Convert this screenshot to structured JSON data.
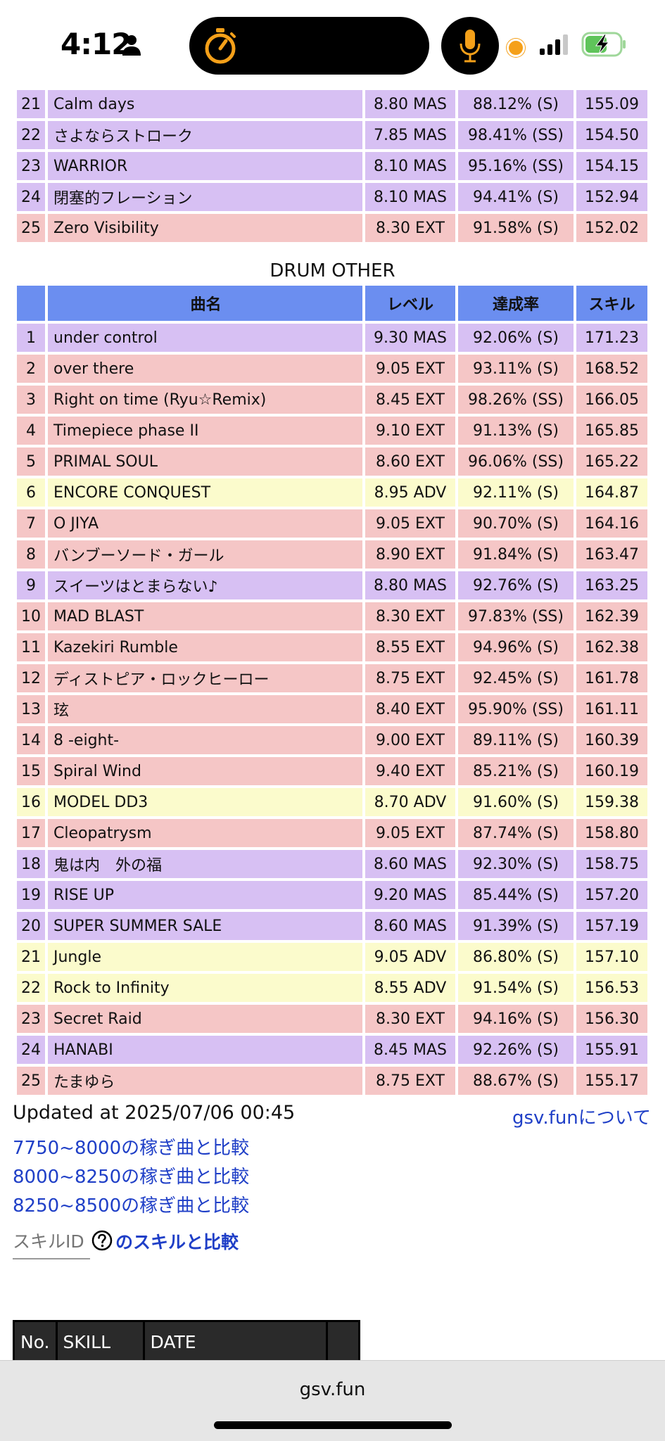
{
  "status_bar": {
    "time": "4:12",
    "icons": [
      "person-icon",
      "timer-icon",
      "mic-icon",
      "signal-icon",
      "battery-charging-icon"
    ],
    "accent_color": "#f5a019"
  },
  "top_table": {
    "rows": [
      {
        "no": "21",
        "name": "Calm days",
        "level": "8.80 MAS",
        "rate": "88.12% (S)",
        "skill": "155.09",
        "diff": "mas"
      },
      {
        "no": "22",
        "name": "さよならストローク",
        "level": "7.85 MAS",
        "rate": "98.41% (SS)",
        "skill": "154.50",
        "diff": "mas"
      },
      {
        "no": "23",
        "name": "WARRIOR",
        "level": "8.10 MAS",
        "rate": "95.16% (SS)",
        "skill": "154.15",
        "diff": "mas"
      },
      {
        "no": "24",
        "name": "閉塞的フレーション",
        "level": "8.10 MAS",
        "rate": "94.41% (S)",
        "skill": "152.94",
        "diff": "mas"
      },
      {
        "no": "25",
        "name": "Zero Visibility",
        "level": "8.30 EXT",
        "rate": "91.58% (S)",
        "skill": "152.02",
        "diff": "ext"
      }
    ]
  },
  "other_section": {
    "title": "DRUM OTHER",
    "headers": {
      "no": "",
      "name": "曲名",
      "level": "レベル",
      "rate": "達成率",
      "skill": "スキル"
    },
    "rows": [
      {
        "no": "1",
        "name": "under control",
        "level": "9.30 MAS",
        "rate": "92.06% (S)",
        "skill": "171.23",
        "diff": "mas"
      },
      {
        "no": "2",
        "name": "over there",
        "level": "9.05 EXT",
        "rate": "93.11% (S)",
        "skill": "168.52",
        "diff": "ext"
      },
      {
        "no": "3",
        "name": "Right on time (Ryu☆Remix)",
        "level": "8.45 EXT",
        "rate": "98.26% (SS)",
        "skill": "166.05",
        "diff": "ext"
      },
      {
        "no": "4",
        "name": "Timepiece phase II",
        "level": "9.10 EXT",
        "rate": "91.13% (S)",
        "skill": "165.85",
        "diff": "ext"
      },
      {
        "no": "5",
        "name": "PRIMAL SOUL",
        "level": "8.60 EXT",
        "rate": "96.06% (SS)",
        "skill": "165.22",
        "diff": "ext"
      },
      {
        "no": "6",
        "name": "ENCORE CONQUEST",
        "level": "8.95 ADV",
        "rate": "92.11% (S)",
        "skill": "164.87",
        "diff": "adv"
      },
      {
        "no": "7",
        "name": "O JIYA",
        "level": "9.05 EXT",
        "rate": "90.70% (S)",
        "skill": "164.16",
        "diff": "ext"
      },
      {
        "no": "8",
        "name": "バンブーソード・ガール",
        "level": "8.90 EXT",
        "rate": "91.84% (S)",
        "skill": "163.47",
        "diff": "ext"
      },
      {
        "no": "9",
        "name": "スイーツはとまらない♪",
        "level": "8.80 MAS",
        "rate": "92.76% (S)",
        "skill": "163.25",
        "diff": "mas"
      },
      {
        "no": "10",
        "name": "MAD BLAST",
        "level": "8.30 EXT",
        "rate": "97.83% (SS)",
        "skill": "162.39",
        "diff": "ext"
      },
      {
        "no": "11",
        "name": "Kazekiri Rumble",
        "level": "8.55 EXT",
        "rate": "94.96% (S)",
        "skill": "162.38",
        "diff": "ext"
      },
      {
        "no": "12",
        "name": "ディストピア・ロックヒーロー",
        "level": "8.75 EXT",
        "rate": "92.45% (S)",
        "skill": "161.78",
        "diff": "ext"
      },
      {
        "no": "13",
        "name": "玹",
        "level": "8.40 EXT",
        "rate": "95.90% (SS)",
        "skill": "161.11",
        "diff": "ext"
      },
      {
        "no": "14",
        "name": "8 -eight-",
        "level": "9.00 EXT",
        "rate": "89.11% (S)",
        "skill": "160.39",
        "diff": "ext"
      },
      {
        "no": "15",
        "name": "Spiral Wind",
        "level": "9.40 EXT",
        "rate": "85.21% (S)",
        "skill": "160.19",
        "diff": "ext"
      },
      {
        "no": "16",
        "name": "MODEL DD3",
        "level": "8.70 ADV",
        "rate": "91.60% (S)",
        "skill": "159.38",
        "diff": "adv"
      },
      {
        "no": "17",
        "name": "Cleopatrysm",
        "level": "9.05 EXT",
        "rate": "87.74% (S)",
        "skill": "158.80",
        "diff": "ext"
      },
      {
        "no": "18",
        "name": "鬼は内　外の福",
        "level": "8.60 MAS",
        "rate": "92.30% (S)",
        "skill": "158.75",
        "diff": "mas"
      },
      {
        "no": "19",
        "name": "RISE UP",
        "level": "9.20 MAS",
        "rate": "85.44% (S)",
        "skill": "157.20",
        "diff": "mas"
      },
      {
        "no": "20",
        "name": "SUPER SUMMER SALE",
        "level": "8.60 MAS",
        "rate": "91.39% (S)",
        "skill": "157.19",
        "diff": "mas"
      },
      {
        "no": "21",
        "name": "Jungle",
        "level": "9.05 ADV",
        "rate": "86.80% (S)",
        "skill": "157.10",
        "diff": "adv"
      },
      {
        "no": "22",
        "name": "Rock to Infinity",
        "level": "8.55 ADV",
        "rate": "91.54% (S)",
        "skill": "156.53",
        "diff": "adv"
      },
      {
        "no": "23",
        "name": "Secret Raid",
        "level": "8.30 EXT",
        "rate": "94.16% (S)",
        "skill": "156.30",
        "diff": "ext"
      },
      {
        "no": "24",
        "name": "HANABI",
        "level": "8.45 MAS",
        "rate": "92.26% (S)",
        "skill": "155.91",
        "diff": "mas"
      },
      {
        "no": "25",
        "name": "たまゆら",
        "level": "8.75 EXT",
        "rate": "88.67% (S)",
        "skill": "155.17",
        "diff": "ext"
      }
    ]
  },
  "footer": {
    "updated": "Updated at 2025/07/06 00:45",
    "about_link": "gsv.funについて",
    "compare_links": [
      "7750~8000の稼ぎ曲と比較",
      "8000~8250の稼ぎ曲と比較",
      "8250~8500の稼ぎ曲と比較"
    ],
    "skill_id_placeholder": "スキルID",
    "compare_skill_link": "のスキルと比較"
  },
  "history_table": {
    "headers": [
      "No.",
      "SKILL",
      "DATE",
      ""
    ]
  },
  "browser": {
    "url": "gsv.fun"
  },
  "colors": {
    "mas": "#d7c0f3",
    "ext": "#f5c6c6",
    "adv": "#fbfbcc",
    "header": "#6b8ef0",
    "link": "#1f3fc7"
  }
}
